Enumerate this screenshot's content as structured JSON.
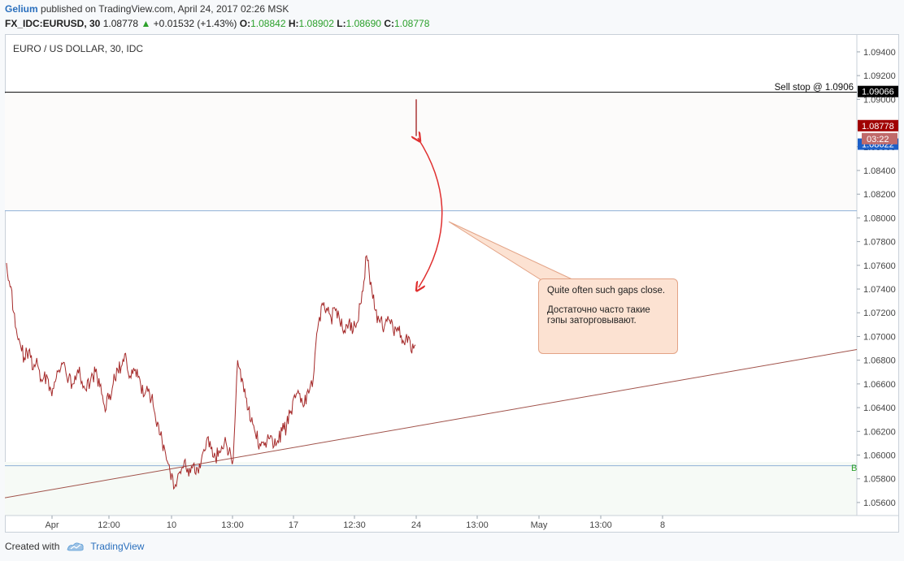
{
  "header": {
    "author": "Gelium",
    "published": "published on TradingView.com, April 24, 2017 02:26 MSK",
    "symbol": "FX_IDC:EURUSD, 30",
    "last": "1.08778",
    "change": "+0.01532 (+1.43%)",
    "o_label": "O:",
    "o": "1.08842",
    "h_label": "H:",
    "h": "1.08902",
    "l_label": "L:",
    "l": "1.08690",
    "c_label": "C:",
    "c": "1.08778"
  },
  "chart_title": "EURO / US DOLLAR, 30, IDC",
  "footer": {
    "created_with": "Created with",
    "brand": "TradingView"
  },
  "colors": {
    "candle": "#a52a2a",
    "hline": "#8fb0d6",
    "trend": "#a0524a",
    "stop": "#000000",
    "callout_bg": "#fce2d2",
    "arrow": "#e03030",
    "bid": "#1c5fc7",
    "last": "#a00000"
  },
  "chart_data": {
    "type": "line",
    "title": "EURO / US DOLLAR, 30, IDC",
    "ylim": [
      1.0549,
      1.0955
    ],
    "y_ticks": [
      "1.09400",
      "1.09200",
      "1.09000",
      "1.08600",
      "1.08400",
      "1.08200",
      "1.08000",
      "1.07800",
      "1.07600",
      "1.07400",
      "1.07200",
      "1.07000",
      "1.06800",
      "1.06600",
      "1.06400",
      "1.06200",
      "1.06000",
      "1.05800",
      "1.05600"
    ],
    "x_ticks": [
      "Apr",
      "12:00",
      "10",
      "13:00",
      "17",
      "12:30",
      "24",
      "13:00",
      "May",
      "13:00",
      "8"
    ],
    "series": [
      {
        "values": [
          1.0762,
          1.0742,
          1.0708,
          1.0695,
          1.0682,
          1.0688,
          1.0672,
          1.0676,
          1.0662,
          1.0668,
          1.0655,
          1.0662,
          1.067,
          1.0678,
          1.0665,
          1.066,
          1.0672,
          1.0662,
          1.0654,
          1.0665,
          1.067,
          1.0658,
          1.0642,
          1.0647,
          1.066,
          1.0672,
          1.0676,
          1.068,
          1.0665,
          1.0672,
          1.0664,
          1.065,
          1.0656,
          1.0642,
          1.0628,
          1.0612,
          1.0596,
          1.0579,
          1.0575,
          1.0586,
          1.0595,
          1.0582,
          1.0592,
          1.0588,
          1.06,
          1.0612,
          1.0605,
          1.0598,
          1.0602,
          1.061,
          1.0602,
          1.0596,
          1.068,
          1.0665,
          1.0648,
          1.0628,
          1.0618,
          1.061,
          1.0608,
          1.0614,
          1.0606,
          1.0612,
          1.062,
          1.0624,
          1.0637,
          1.0648,
          1.0652,
          1.0642,
          1.0652,
          1.0664,
          1.0706,
          1.0728,
          1.0724,
          1.0716,
          1.0722,
          1.0712,
          1.0705,
          1.0712,
          1.0705,
          1.0712,
          1.0738,
          1.0768,
          1.0746,
          1.0722,
          1.0712,
          1.0708,
          1.0714,
          1.0705,
          1.0708,
          1.0694,
          1.0702,
          1.0688,
          1.0693
        ]
      }
    ],
    "gap_bar": {
      "high": 1.09,
      "low": 1.0869
    },
    "lines": {
      "sell_stop": 1.0906,
      "upper": 1.0806,
      "lower": 1.0591,
      "trend_start": 1.0564,
      "trend_end": 1.0689
    },
    "price_labels": [
      {
        "text": "1.09066",
        "kind": "stop"
      },
      {
        "text": "1.08778",
        "kind": "last"
      },
      {
        "text": "03:22",
        "kind": "timer"
      },
      {
        "text": "1.08622",
        "kind": "bid"
      }
    ],
    "annotations": {
      "sell_stop": "Sell stop @ 1.0906",
      "zone_letter": "B",
      "callout_en": "Quite often such gaps close.",
      "callout_ru": "Достаточно часто такие гэпы заторговывают."
    }
  }
}
